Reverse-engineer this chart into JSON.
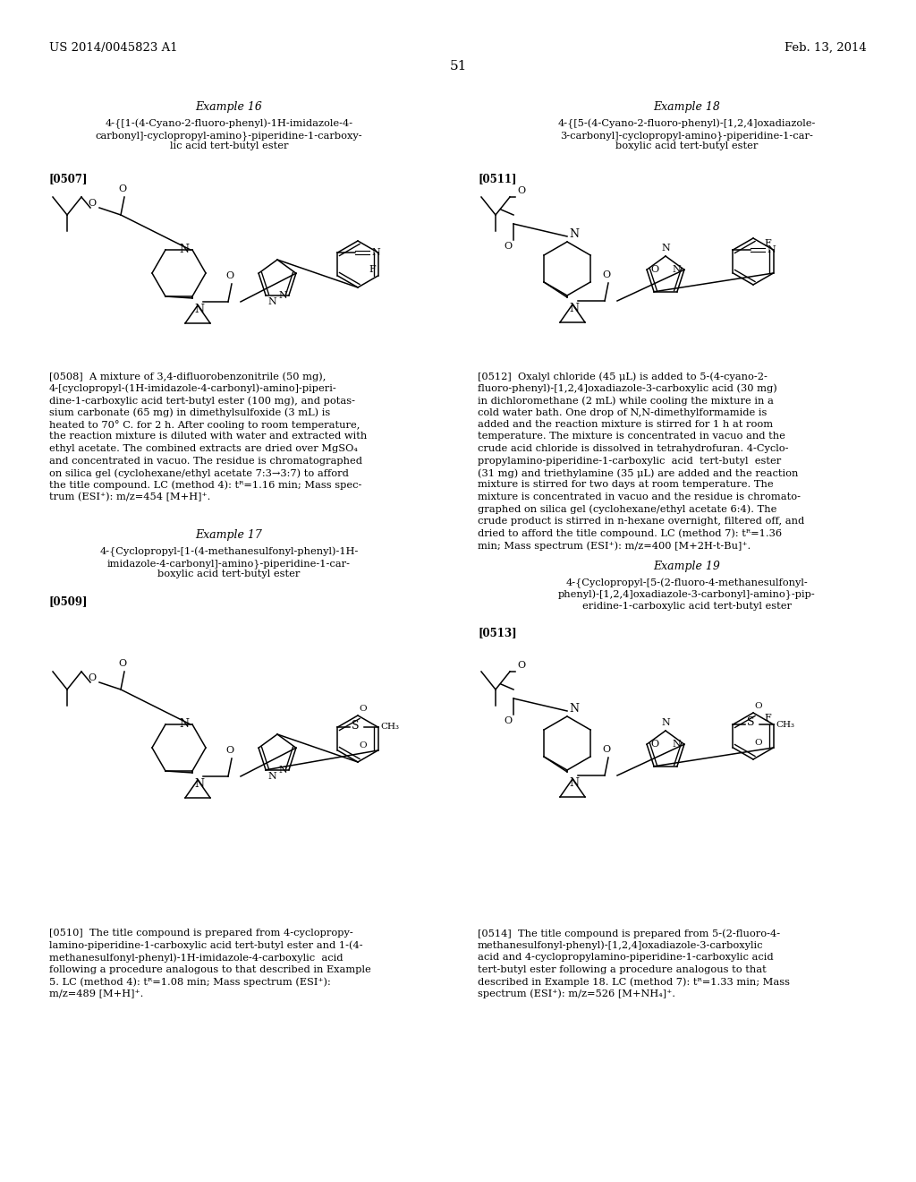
{
  "background_color": "#ffffff",
  "header_left": "US 2014/0045823 A1",
  "header_right": "Feb. 13, 2014",
  "page_number": "51",
  "ex16_example": "Example 16",
  "ex16_title": "4-{[1-(4-Cyano-2-fluoro-phenyl)-1H-imidazole-4-\ncarbonyl]-cyclopropyl-amino}-piperidine-1-carboxy-\nlic acid tert-butyl ester",
  "ex16_para": "[0507]",
  "ex16_body_lines": [
    "[0508]  A mixture of 3,4-difluorobenzonitrile (50 mg),",
    "4-[cyclopropyl-(1H-imidazole-4-carbonyl)-amino]-piperi-",
    "dine-1-carboxylic acid tert-butyl ester (100 mg), and potas-",
    "sium carbonate (65 mg) in dimethylsulfoxide (3 mL) is",
    "heated to 70° C. for 2 h. After cooling to room temperature,",
    "the reaction mixture is diluted with water and extracted with",
    "ethyl acetate. The combined extracts are dried over MgSO₄",
    "and concentrated in vacuo. The residue is chromatographed",
    "on silica gel (cyclohexane/ethyl acetate 7:3→3:7) to afford",
    "the title compound. LC (method 4): tᴿ=1.16 min; Mass spec-",
    "trum (ESI⁺): m/z=454 [M+H]⁺."
  ],
  "ex17_example": "Example 17",
  "ex17_title": "4-{Cyclopropyl-[1-(4-methanesulfonyl-phenyl)-1H-\nimidazole-4-carbonyl]-amino}-piperidine-1-car-\nboxylic acid tert-butyl ester",
  "ex17_para": "[0509]",
  "ex17_body_lines": [
    "[0510]  The title compound is prepared from 4-cyclopropy-",
    "lamino-piperidine-1-carboxylic acid tert-butyl ester and 1-(4-",
    "methanesulfonyl-phenyl)-1H-imidazole-4-carboxylic  acid",
    "following a procedure analogous to that described in Example",
    "5. LC (method 4): tᴿ=1.08 min; Mass spectrum (ESI⁺):",
    "m/z=489 [M+H]⁺."
  ],
  "ex18_example": "Example 18",
  "ex18_title": "4-{[5-(4-Cyano-2-fluoro-phenyl)-[1,2,4]oxadiazole-\n3-carbonyl]-cyclopropyl-amino}-piperidine-1-car-\nboxylic acid tert-butyl ester",
  "ex18_para": "[0511]",
  "ex18_body_lines": [
    "[0512]  Oxalyl chloride (45 μL) is added to 5-(4-cyano-2-",
    "fluoro-phenyl)-[1,2,4]oxadiazole-3-carboxylic acid (30 mg)",
    "in dichloromethane (2 mL) while cooling the mixture in a",
    "cold water bath. One drop of N,N-dimethylformamide is",
    "added and the reaction mixture is stirred for 1 h at room",
    "temperature. The mixture is concentrated in vacuo and the",
    "crude acid chloride is dissolved in tetrahydrofuran. 4-Cyclo-",
    "propylamino-piperidine-1-carboxylic  acid  tert-butyl  ester",
    "(31 mg) and triethylamine (35 μL) are added and the reaction",
    "mixture is stirred for two days at room temperature. The",
    "mixture is concentrated in vacuo and the residue is chromato-",
    "graphed on silica gel (cyclohexane/ethyl acetate 6:4). The",
    "crude product is stirred in n-hexane overnight, filtered off, and",
    "dried to afford the title compound. LC (method 7): tᴿ=1.36",
    "min; Mass spectrum (ESI⁺): m/z=400 [M+2H-t-Bu]⁺."
  ],
  "ex19_example": "Example 19",
  "ex19_title": "4-{Cyclopropyl-[5-(2-fluoro-4-methanesulfonyl-\nphenyl)-[1,2,4]oxadiazole-3-carbonyl]-amino}-pip-\neridine-1-carboxylic acid tert-butyl ester",
  "ex19_para": "[0513]",
  "ex19_body_lines": [
    "[0514]  The title compound is prepared from 5-(2-fluoro-4-",
    "methanesulfonyl-phenyl)-[1,2,4]oxadiazole-3-carboxylic",
    "acid and 4-cyclopropylamino-piperidine-1-carboxylic acid",
    "tert-butyl ester following a procedure analogous to that",
    "described in Example 18. LC (method 7): tᴿ=1.33 min; Mass",
    "spectrum (ESI⁺): m/z=526 [M+NH₄]⁺."
  ]
}
